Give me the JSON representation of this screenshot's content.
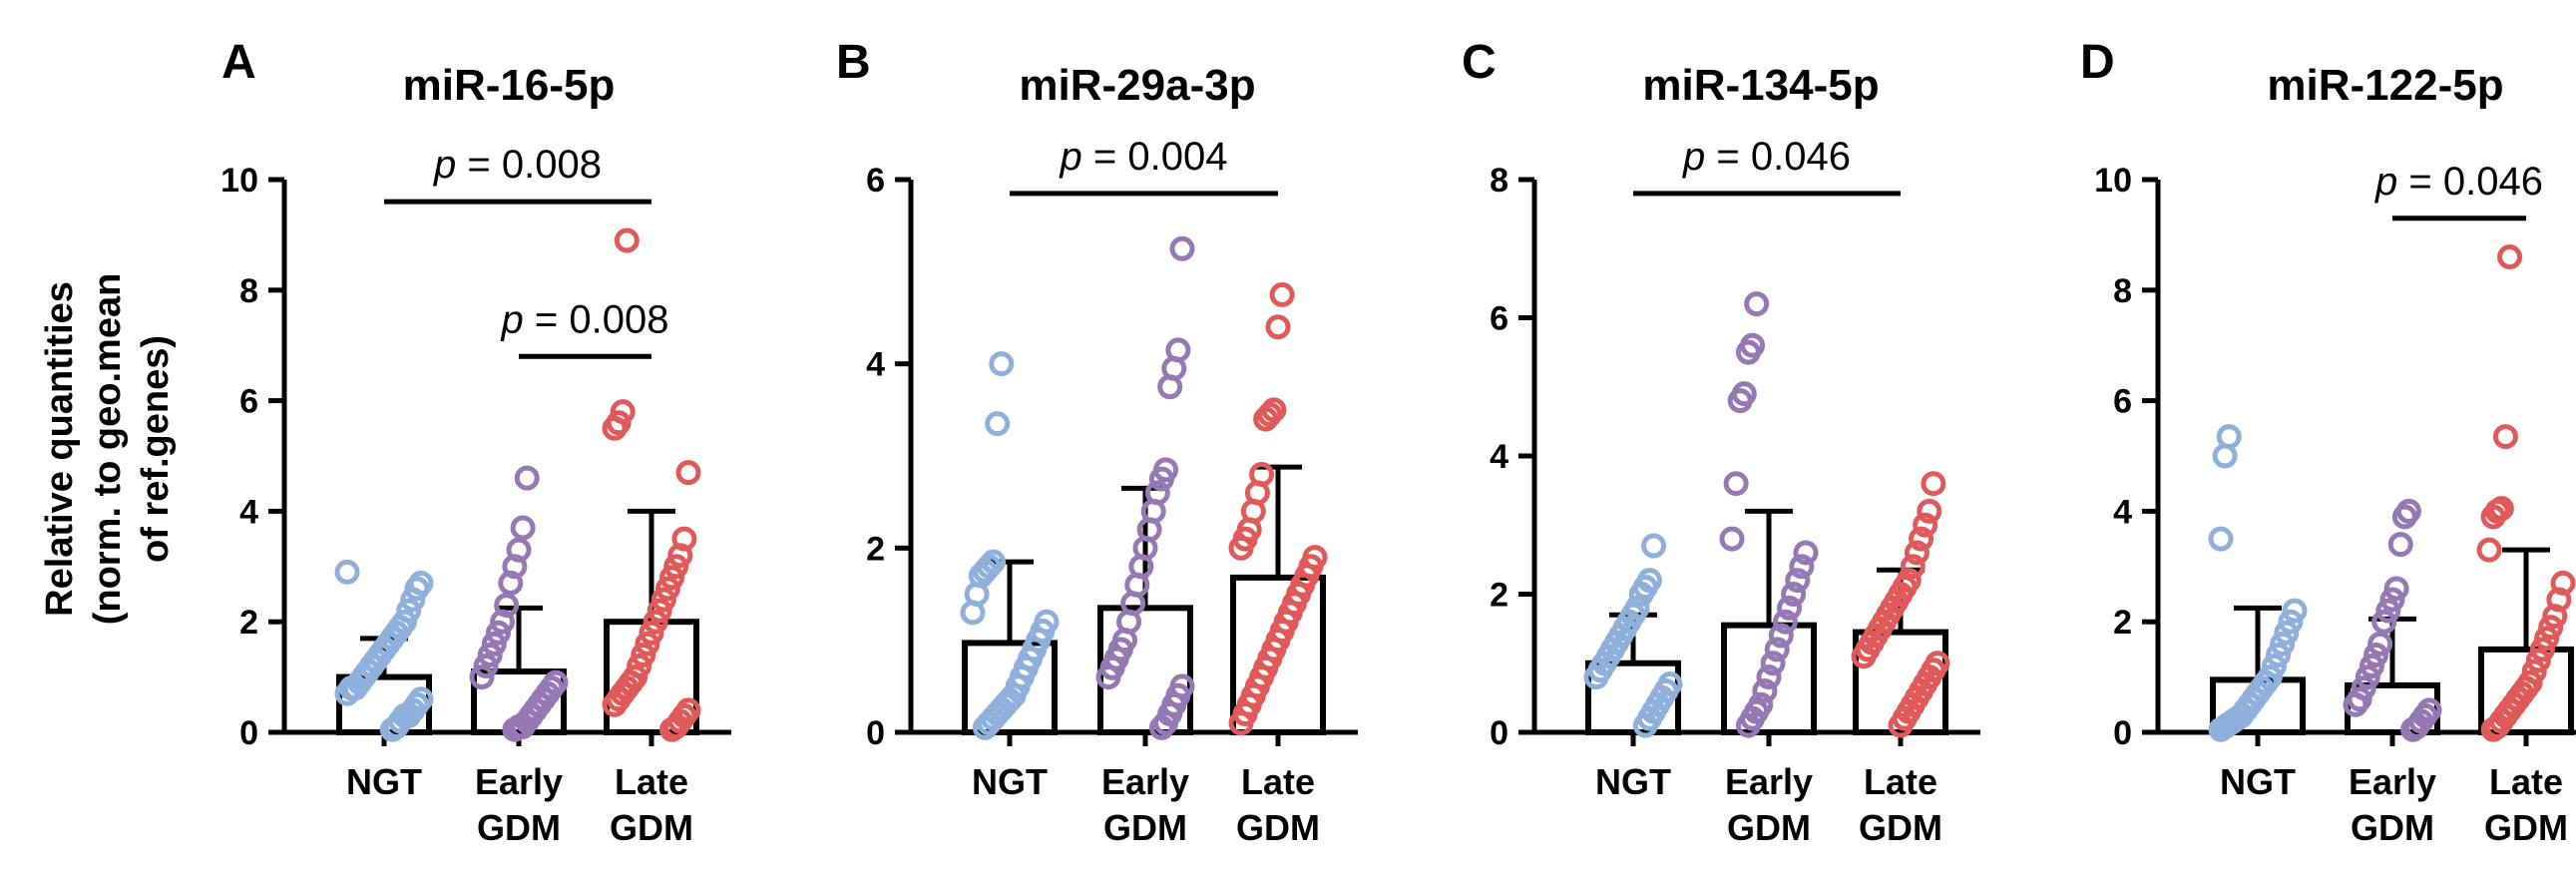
{
  "ylabel_lines": [
    "Relative quantities",
    "(norm. to geo.mean",
    "of ref.genes)"
  ],
  "colors": {
    "NGT": "#8fb0dc",
    "Early GDM": "#9578b4",
    "Late GDM": "#e05a5a",
    "bar": "#000000"
  },
  "chart_data": [
    {
      "panel": "A",
      "type": "bar",
      "title": "miR-16-5p",
      "categories": [
        [
          "NGT"
        ],
        [
          "Early",
          "GDM"
        ],
        [
          "Late",
          "GDM"
        ]
      ],
      "ylim": [
        0,
        10
      ],
      "yticks": [
        "0",
        "2",
        "4",
        "6",
        "8",
        "10"
      ],
      "means": [
        1.0,
        1.1,
        2.0
      ],
      "sd": [
        0.7,
        1.15,
        2.0
      ],
      "points": [
        [
          2.9,
          2.7,
          2.6,
          2.4,
          2.2,
          2.0,
          1.9,
          1.8,
          1.7,
          1.6,
          1.5,
          1.4,
          1.3,
          1.2,
          1.1,
          1.0,
          0.9,
          0.8,
          0.8,
          0.7,
          0.6,
          0.5,
          0.4,
          0.3,
          0.3,
          0.2,
          0.1,
          0.05
        ],
        [
          4.6,
          3.7,
          3.3,
          3.0,
          2.7,
          2.3,
          2.0,
          1.8,
          1.6,
          1.4,
          1.2,
          1.0,
          0.9,
          0.8,
          0.7,
          0.6,
          0.5,
          0.4,
          0.3,
          0.2,
          0.1,
          0.1,
          0.05
        ],
        [
          8.9,
          5.8,
          5.6,
          5.5,
          4.7,
          3.5,
          3.2,
          3.0,
          2.8,
          2.6,
          2.4,
          2.2,
          2.0,
          1.8,
          1.6,
          1.4,
          1.2,
          1.0,
          0.9,
          0.8,
          0.7,
          0.6,
          0.5,
          0.4,
          0.3,
          0.2,
          0.1,
          0.05
        ]
      ],
      "sig": [
        {
          "from": 0,
          "to": 2,
          "y": 9.6,
          "label": "= 0.008"
        },
        {
          "from": 1,
          "to": 2,
          "y": 6.8,
          "label": "= 0.008"
        }
      ]
    },
    {
      "panel": "B",
      "type": "bar",
      "title": "miR-29a-3p",
      "categories": [
        [
          "NGT"
        ],
        [
          "Early",
          "GDM"
        ],
        [
          "Late",
          "GDM"
        ]
      ],
      "ylim": [
        0,
        6
      ],
      "yticks": [
        "0",
        "2",
        "4",
        "6"
      ],
      "means": [
        0.97,
        1.35,
        1.68
      ],
      "sd": [
        0.88,
        1.3,
        1.2
      ],
      "points": [
        [
          4.0,
          3.35,
          1.85,
          1.8,
          1.75,
          1.7,
          1.5,
          1.3,
          1.2,
          1.1,
          1.0,
          0.9,
          0.8,
          0.7,
          0.6,
          0.5,
          0.4,
          0.35,
          0.3,
          0.25,
          0.2,
          0.15,
          0.1,
          0.05
        ],
        [
          5.25,
          4.15,
          3.95,
          3.75,
          2.85,
          2.75,
          2.6,
          2.4,
          2.2,
          2.0,
          1.8,
          1.6,
          1.4,
          1.2,
          1.0,
          0.9,
          0.8,
          0.7,
          0.6,
          0.5,
          0.4,
          0.3,
          0.2,
          0.1,
          0.05
        ],
        [
          4.75,
          4.4,
          3.5,
          3.45,
          3.4,
          2.8,
          2.6,
          2.4,
          2.2,
          2.1,
          2.0,
          1.9,
          1.8,
          1.7,
          1.6,
          1.5,
          1.4,
          1.3,
          1.2,
          1.1,
          1.0,
          0.9,
          0.8,
          0.7,
          0.6,
          0.5,
          0.4,
          0.3,
          0.2,
          0.1
        ]
      ],
      "sig": [
        {
          "from": 0,
          "to": 2,
          "y": 5.85,
          "label": "= 0.004"
        }
      ]
    },
    {
      "panel": "C",
      "type": "bar",
      "title": "miR-134-5p",
      "categories": [
        [
          "NGT"
        ],
        [
          "Early",
          "GDM"
        ],
        [
          "Late",
          "GDM"
        ]
      ],
      "ylim": [
        0,
        8
      ],
      "yticks": [
        "0",
        "2",
        "4",
        "6",
        "8"
      ],
      "means": [
        1.0,
        1.55,
        1.45
      ],
      "sd": [
        0.7,
        1.65,
        0.9
      ],
      "points": [
        [
          2.7,
          2.2,
          2.1,
          2.0,
          1.8,
          1.7,
          1.6,
          1.5,
          1.4,
          1.3,
          1.2,
          1.1,
          1.0,
          0.9,
          0.8,
          0.7,
          0.6,
          0.5,
          0.4,
          0.3,
          0.2,
          0.1
        ],
        [
          6.2,
          5.6,
          5.5,
          4.9,
          4.8,
          3.6,
          2.8,
          2.6,
          2.4,
          2.2,
          2.0,
          1.8,
          1.6,
          1.4,
          1.2,
          1.0,
          0.8,
          0.6,
          0.4,
          0.3,
          0.2,
          0.1
        ],
        [
          3.6,
          3.2,
          3.0,
          2.8,
          2.6,
          2.4,
          2.2,
          2.1,
          2.0,
          1.9,
          1.8,
          1.7,
          1.6,
          1.5,
          1.4,
          1.3,
          1.2,
          1.1,
          1.0,
          0.9,
          0.8,
          0.7,
          0.6,
          0.5,
          0.4,
          0.3,
          0.2,
          0.1
        ]
      ],
      "sig": [
        {
          "from": 0,
          "to": 2,
          "y": 7.8,
          "label": "= 0.046"
        }
      ]
    },
    {
      "panel": "D",
      "type": "bar",
      "title": "miR-122-5p",
      "categories": [
        [
          "NGT"
        ],
        [
          "Early",
          "GDM"
        ],
        [
          "Late",
          "GDM"
        ]
      ],
      "ylim": [
        0,
        10
      ],
      "yticks": [
        "0",
        "2",
        "4",
        "6",
        "8",
        "10"
      ],
      "means": [
        0.95,
        0.85,
        1.5
      ],
      "sd": [
        1.3,
        1.2,
        1.8
      ],
      "points": [
        [
          5.35,
          5.0,
          3.5,
          2.2,
          2.0,
          1.8,
          1.6,
          1.4,
          1.2,
          1.0,
          0.9,
          0.8,
          0.7,
          0.6,
          0.5,
          0.4,
          0.3,
          0.25,
          0.2,
          0.15,
          0.1,
          0.05
        ],
        [
          4.0,
          3.9,
          3.4,
          2.6,
          2.4,
          2.2,
          2.0,
          1.6,
          1.4,
          1.2,
          1.0,
          0.8,
          0.6,
          0.5,
          0.4,
          0.3,
          0.2,
          0.1,
          0.05
        ],
        [
          8.6,
          5.35,
          4.05,
          4.0,
          3.9,
          3.3,
          2.7,
          2.4,
          2.1,
          1.9,
          1.7,
          1.5,
          1.3,
          1.1,
          0.9,
          0.8,
          0.7,
          0.6,
          0.5,
          0.4,
          0.3,
          0.2,
          0.1,
          0.05
        ]
      ],
      "sig": [
        {
          "from": 1,
          "to": 2,
          "y": 9.3,
          "label": "= 0.046"
        }
      ]
    }
  ]
}
